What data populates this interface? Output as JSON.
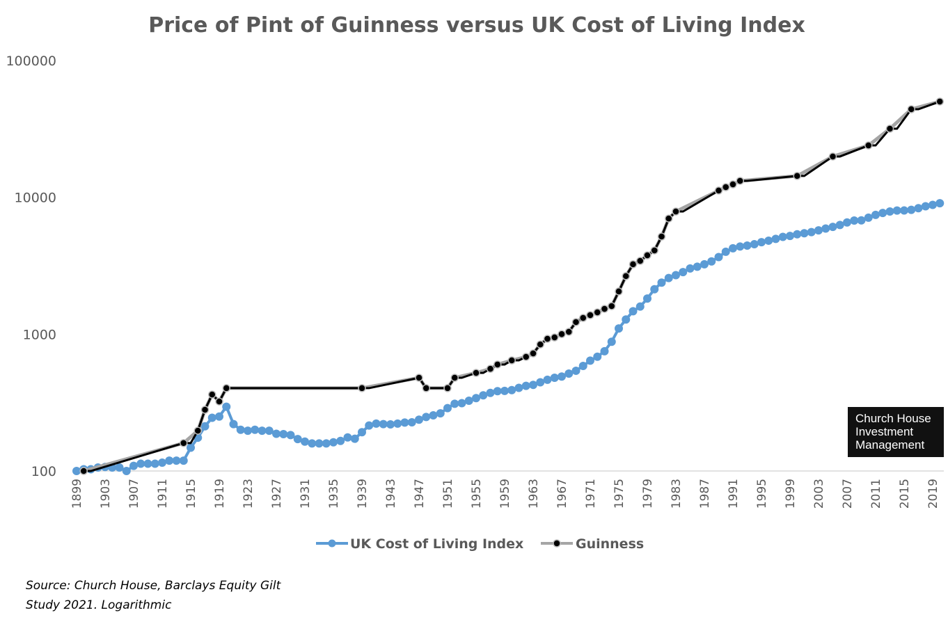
{
  "chart_data": {
    "type": "line",
    "title": "Price of Pint of Guinness versus UK Cost of Living Index",
    "xlabel": "",
    "ylabel": "",
    "yscale": "log",
    "ylim": [
      100,
      100000
    ],
    "yticks": [
      "100",
      "1000",
      "10000",
      "100000"
    ],
    "xlim": [
      1899,
      2020
    ],
    "xticks": [
      "1899",
      "1903",
      "1907",
      "1911",
      "1915",
      "1919",
      "1923",
      "1927",
      "1931",
      "1935",
      "1939",
      "1943",
      "1947",
      "1951",
      "1955",
      "1959",
      "1963",
      "1967",
      "1971",
      "1975",
      "1979",
      "1983",
      "1987",
      "1991",
      "1995",
      "1999",
      "2003",
      "2007",
      "2011",
      "2015",
      "2019"
    ],
    "legend_position": "bottom",
    "series": [
      {
        "name": "UK Cost of Living Index",
        "color": "#5B9BD5",
        "x": [
          1899,
          1900,
          1901,
          1902,
          1903,
          1904,
          1905,
          1906,
          1907,
          1908,
          1909,
          1910,
          1911,
          1912,
          1913,
          1914,
          1915,
          1916,
          1917,
          1918,
          1919,
          1920,
          1921,
          1922,
          1923,
          1924,
          1925,
          1926,
          1927,
          1928,
          1929,
          1930,
          1931,
          1932,
          1933,
          1934,
          1935,
          1936,
          1937,
          1938,
          1939,
          1940,
          1941,
          1942,
          1943,
          1944,
          1945,
          1946,
          1947,
          1948,
          1949,
          1950,
          1951,
          1952,
          1953,
          1954,
          1955,
          1956,
          1957,
          1958,
          1959,
          1960,
          1961,
          1962,
          1963,
          1964,
          1965,
          1966,
          1967,
          1968,
          1969,
          1970,
          1971,
          1972,
          1973,
          1974,
          1975,
          1976,
          1977,
          1978,
          1979,
          1980,
          1981,
          1982,
          1983,
          1984,
          1985,
          1986,
          1987,
          1988,
          1989,
          1990,
          1991,
          1992,
          1993,
          1994,
          1995,
          1996,
          1997,
          1998,
          1999,
          2000,
          2001,
          2002,
          2003,
          2004,
          2005,
          2006,
          2007,
          2008,
          2009,
          2010,
          2011,
          2012,
          2013,
          2014,
          2015,
          2016,
          2017,
          2018,
          2019,
          2020
        ],
        "values": [
          100,
          103,
          103,
          106,
          107,
          106,
          106,
          100,
          109,
          113,
          113,
          113,
          115,
          119,
          119,
          119,
          148,
          175,
          212,
          245,
          250,
          295,
          220,
          200,
          197,
          200,
          197,
          197,
          187,
          186,
          183,
          171,
          164,
          159,
          159,
          159,
          162,
          166,
          176,
          172,
          192,
          215,
          222,
          220,
          219,
          222,
          226,
          227,
          237,
          248,
          255,
          264,
          288,
          310,
          313,
          326,
          341,
          357,
          372,
          383,
          385,
          390,
          405,
          419,
          426,
          445,
          464,
          480,
          490,
          515,
          540,
          586,
          640,
          684,
          750,
          880,
          1100,
          1280,
          1470,
          1590,
          1820,
          2130,
          2380,
          2570,
          2700,
          2840,
          3020,
          3110,
          3240,
          3400,
          3660,
          4000,
          4240,
          4370,
          4440,
          4540,
          4700,
          4820,
          4970,
          5140,
          5220,
          5370,
          5460,
          5570,
          5730,
          5910,
          6080,
          6280,
          6550,
          6760,
          6780,
          7100,
          7440,
          7680,
          7880,
          8000,
          8010,
          8100,
          8330,
          8600,
          8800,
          9050
        ]
      },
      {
        "name": "Guinness",
        "color": "#A5A5A5",
        "marker_color": "#000000",
        "x": [
          1900,
          1914,
          1916,
          1917,
          1918,
          1919,
          1920,
          1939,
          1947,
          1948,
          1951,
          1952,
          1955,
          1957,
          1958,
          1960,
          1962,
          1963,
          1964,
          1965,
          1966,
          1967,
          1968,
          1969,
          1970,
          1971,
          1972,
          1973,
          1974,
          1975,
          1976,
          1977,
          1978,
          1979,
          1980,
          1981,
          1982,
          1983,
          1989,
          1990,
          1991,
          1992,
          2000,
          2005,
          2010,
          2013,
          2016,
          2020
        ],
        "values": [
          100,
          160,
          197,
          280,
          362,
          322,
          403,
          403,
          480,
          403,
          403,
          480,
          521,
          558,
          600,
          643,
          682,
          723,
          841,
          924,
          946,
          1000,
          1040,
          1225,
          1313,
          1377,
          1443,
          1530,
          1603,
          2051,
          2655,
          3240,
          3430,
          3767,
          4090,
          5167,
          7000,
          7870,
          11200,
          11860,
          12430,
          13190,
          14320,
          19870,
          23930,
          31700,
          44000,
          50100
        ]
      }
    ]
  },
  "source_note": [
    "Source: Church House, Barclays Equity Gilt",
    "Study 2021. Logarithmic"
  ],
  "logo": [
    "Church House",
    "Investment",
    "Management"
  ]
}
